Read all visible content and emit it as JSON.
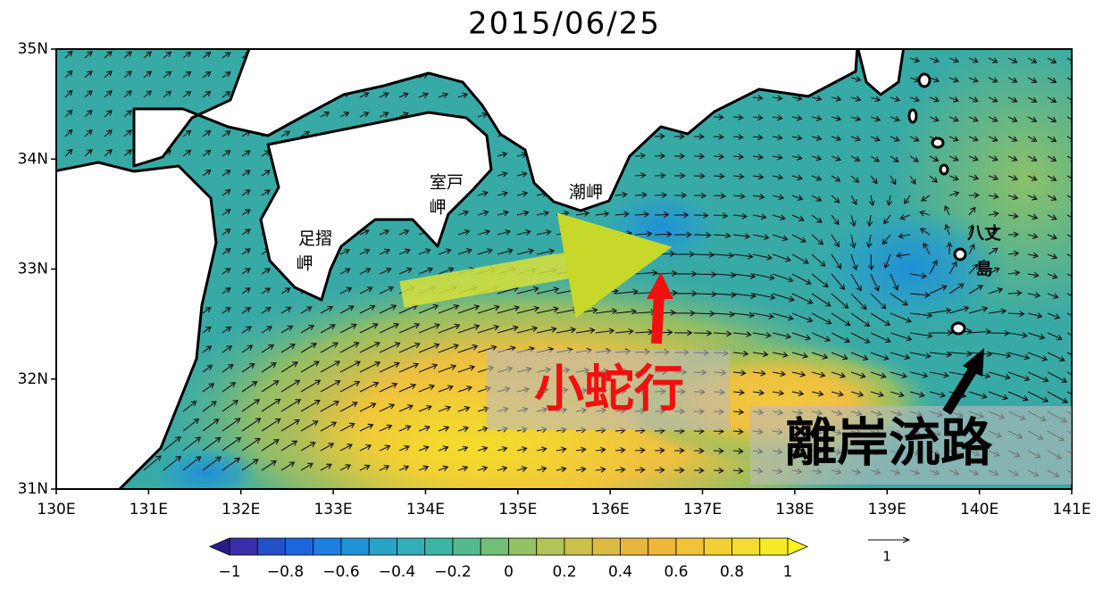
{
  "title": "2015/06/25",
  "lat_labels": [
    "35N",
    "34N",
    "33N",
    "32N",
    "31N"
  ],
  "lon_labels": [
    "130E",
    "131E",
    "132E",
    "133E",
    "134E",
    "135E",
    "136E",
    "137E",
    "138E",
    "139E",
    "140E",
    "141E"
  ],
  "colorbar": {
    "ticks": [
      "−1",
      "−0.8",
      "−0.6",
      "−0.4",
      "−0.2",
      "0",
      "0.2",
      "0.4",
      "0.6",
      "0.8",
      "1"
    ]
  },
  "vector_scale": "1",
  "places": [
    [
      "足摺",
      "岬"
    ],
    [
      "室戸",
      "岬"
    ],
    [
      "潮岬"
    ],
    [
      "八丈",
      "島"
    ]
  ],
  "annotations": [
    "小蛇行",
    "離岸流路"
  ]
}
